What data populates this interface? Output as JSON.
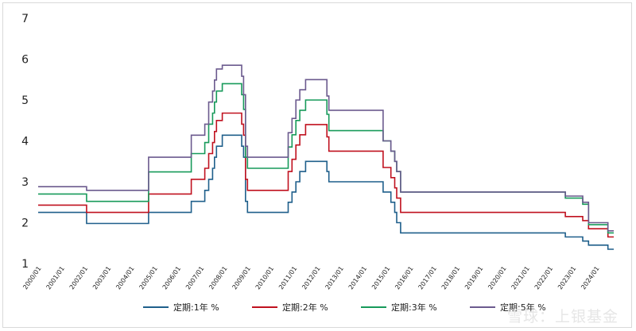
{
  "chart_data": {
    "type": "line",
    "title": "",
    "xlabel": "",
    "ylabel": "",
    "ylim": [
      1,
      7
    ],
    "yticks": [
      "1",
      "2",
      "3",
      "4",
      "5",
      "6",
      "7"
    ],
    "xticks": [
      "2000/01",
      "2001/01",
      "2002/01",
      "2003/01",
      "2004/01",
      "2005/01",
      "2006/01",
      "2007/01",
      "2008/01",
      "2009/01",
      "2010/01",
      "2011/01",
      "2012/01",
      "2013/01",
      "2014/01",
      "2015/01",
      "2016/01",
      "2017/01",
      "2018/01",
      "2019/01",
      "2020/01",
      "2021/01",
      "2022/01",
      "2023/01",
      "2024/01"
    ],
    "grid": false,
    "legend_position": "bottom",
    "series": [
      {
        "name": "定期:1年 %",
        "color": "#1f5f8b",
        "points": [
          [
            "2000/01",
            2.25
          ],
          [
            "2002/02",
            1.98
          ],
          [
            "2004/10",
            2.25
          ],
          [
            "2006/08",
            2.52
          ],
          [
            "2007/03",
            2.79
          ],
          [
            "2007/05",
            3.06
          ],
          [
            "2007/07",
            3.33
          ],
          [
            "2007/08",
            3.6
          ],
          [
            "2007/09",
            3.87
          ],
          [
            "2007/12",
            4.14
          ],
          [
            "2008/10",
            3.87
          ],
          [
            "2008/11",
            3.6
          ],
          [
            "2008/12",
            2.52
          ],
          [
            "2009/01",
            2.25
          ],
          [
            "2010/10",
            2.5
          ],
          [
            "2010/12",
            2.75
          ],
          [
            "2011/02",
            3.0
          ],
          [
            "2011/04",
            3.25
          ],
          [
            "2011/07",
            3.5
          ],
          [
            "2012/06",
            3.25
          ],
          [
            "2012/07",
            3.0
          ],
          [
            "2014/11",
            2.75
          ],
          [
            "2015/03",
            2.5
          ],
          [
            "2015/05",
            2.25
          ],
          [
            "2015/06",
            2.0
          ],
          [
            "2015/08",
            1.75
          ],
          [
            "2022/09",
            1.65
          ],
          [
            "2023/06",
            1.55
          ],
          [
            "2023/09",
            1.45
          ],
          [
            "2024/07",
            1.35
          ]
        ]
      },
      {
        "name": "定期:2年 %",
        "color": "#c0111f",
        "points": [
          [
            "2000/01",
            2.43
          ],
          [
            "2002/02",
            2.25
          ],
          [
            "2004/10",
            2.7
          ],
          [
            "2006/08",
            3.06
          ],
          [
            "2007/03",
            3.33
          ],
          [
            "2007/05",
            3.69
          ],
          [
            "2007/07",
            3.96
          ],
          [
            "2007/08",
            4.23
          ],
          [
            "2007/09",
            4.5
          ],
          [
            "2007/12",
            4.68
          ],
          [
            "2008/10",
            4.41
          ],
          [
            "2008/11",
            4.14
          ],
          [
            "2008/12",
            3.06
          ],
          [
            "2009/01",
            2.79
          ],
          [
            "2010/10",
            3.25
          ],
          [
            "2010/12",
            3.55
          ],
          [
            "2011/02",
            3.9
          ],
          [
            "2011/04",
            4.15
          ],
          [
            "2011/07",
            4.4
          ],
          [
            "2012/06",
            4.1
          ],
          [
            "2012/07",
            3.75
          ],
          [
            "2014/11",
            3.35
          ],
          [
            "2015/03",
            3.1
          ],
          [
            "2015/05",
            2.85
          ],
          [
            "2015/06",
            2.6
          ],
          [
            "2015/08",
            2.25
          ],
          [
            "2022/09",
            2.15
          ],
          [
            "2023/06",
            2.05
          ],
          [
            "2023/09",
            1.85
          ],
          [
            "2024/07",
            1.65
          ]
        ]
      },
      {
        "name": "定期:3年 %",
        "color": "#179a5a",
        "points": [
          [
            "2000/01",
            2.7
          ],
          [
            "2002/02",
            2.52
          ],
          [
            "2004/10",
            3.24
          ],
          [
            "2006/08",
            3.69
          ],
          [
            "2007/03",
            3.96
          ],
          [
            "2007/05",
            4.41
          ],
          [
            "2007/07",
            4.68
          ],
          [
            "2007/08",
            4.95
          ],
          [
            "2007/09",
            5.22
          ],
          [
            "2007/12",
            5.4
          ],
          [
            "2008/10",
            5.13
          ],
          [
            "2008/11",
            4.77
          ],
          [
            "2008/12",
            3.6
          ],
          [
            "2009/01",
            3.33
          ],
          [
            "2010/10",
            3.85
          ],
          [
            "2010/12",
            4.15
          ],
          [
            "2011/02",
            4.5
          ],
          [
            "2011/04",
            4.75
          ],
          [
            "2011/07",
            5.0
          ],
          [
            "2012/06",
            4.65
          ],
          [
            "2012/07",
            4.25
          ],
          [
            "2014/11",
            4.0
          ],
          [
            "2015/03",
            3.75
          ],
          [
            "2015/05",
            3.5
          ],
          [
            "2015/06",
            3.25
          ],
          [
            "2015/08",
            2.75
          ],
          [
            "2022/09",
            2.6
          ],
          [
            "2023/06",
            2.45
          ],
          [
            "2023/09",
            1.95
          ],
          [
            "2024/07",
            1.75
          ]
        ]
      },
      {
        "name": "定期:5年 %",
        "color": "#6b5a8e",
        "points": [
          [
            "2000/01",
            2.88
          ],
          [
            "2002/02",
            2.79
          ],
          [
            "2004/10",
            3.6
          ],
          [
            "2006/08",
            4.14
          ],
          [
            "2007/03",
            4.41
          ],
          [
            "2007/05",
            4.95
          ],
          [
            "2007/07",
            5.22
          ],
          [
            "2007/08",
            5.49
          ],
          [
            "2007/09",
            5.76
          ],
          [
            "2007/12",
            5.85
          ],
          [
            "2008/10",
            5.58
          ],
          [
            "2008/11",
            5.13
          ],
          [
            "2008/12",
            3.87
          ],
          [
            "2009/01",
            3.6
          ],
          [
            "2010/10",
            4.2
          ],
          [
            "2010/12",
            4.55
          ],
          [
            "2011/02",
            5.0
          ],
          [
            "2011/04",
            5.25
          ],
          [
            "2011/07",
            5.5
          ],
          [
            "2012/06",
            5.1
          ],
          [
            "2012/07",
            4.75
          ],
          [
            "2014/11",
            4.0
          ],
          [
            "2015/03",
            3.75
          ],
          [
            "2015/05",
            3.5
          ],
          [
            "2015/06",
            3.25
          ],
          [
            "2015/08",
            2.75
          ],
          [
            "2022/09",
            2.65
          ],
          [
            "2023/06",
            2.5
          ],
          [
            "2023/09",
            2.0
          ],
          [
            "2024/07",
            1.8
          ]
        ]
      }
    ],
    "x_end": "2024/10"
  },
  "watermark": "雪球：上银基金"
}
